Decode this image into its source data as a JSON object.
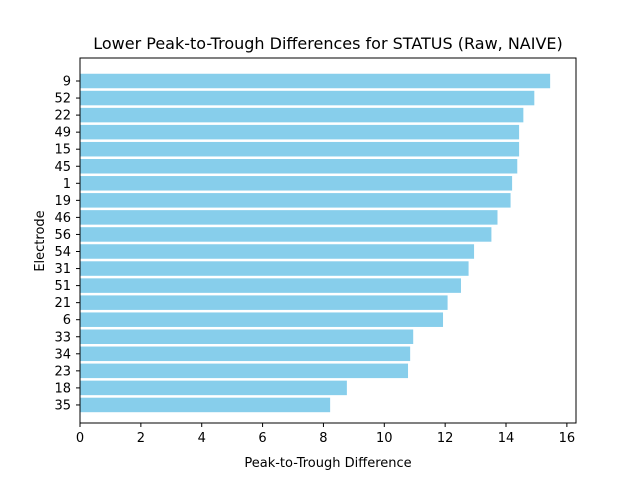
{
  "chart_data": {
    "type": "bar",
    "orientation": "horizontal",
    "title": "Lower Peak-to-Trough Differences for STATUS (Raw, NAIVE)",
    "xlabel": "Peak-to-Trough Difference",
    "ylabel": "Electrode",
    "categories": [
      "9",
      "52",
      "22",
      "49",
      "15",
      "45",
      "1",
      "19",
      "46",
      "56",
      "54",
      "31",
      "51",
      "21",
      "6",
      "33",
      "34",
      "23",
      "18",
      "35"
    ],
    "values": [
      15.45,
      14.93,
      14.57,
      14.43,
      14.43,
      14.37,
      14.2,
      14.15,
      13.72,
      13.52,
      12.95,
      12.77,
      12.52,
      12.08,
      11.93,
      10.95,
      10.85,
      10.78,
      8.77,
      8.22
    ],
    "xlim": [
      0,
      16.3
    ],
    "xticks": [
      "0",
      "2",
      "4",
      "6",
      "8",
      "10",
      "12",
      "14",
      "16"
    ],
    "bar_color": "#87ceeb",
    "grid": false,
    "legend": "none"
  }
}
